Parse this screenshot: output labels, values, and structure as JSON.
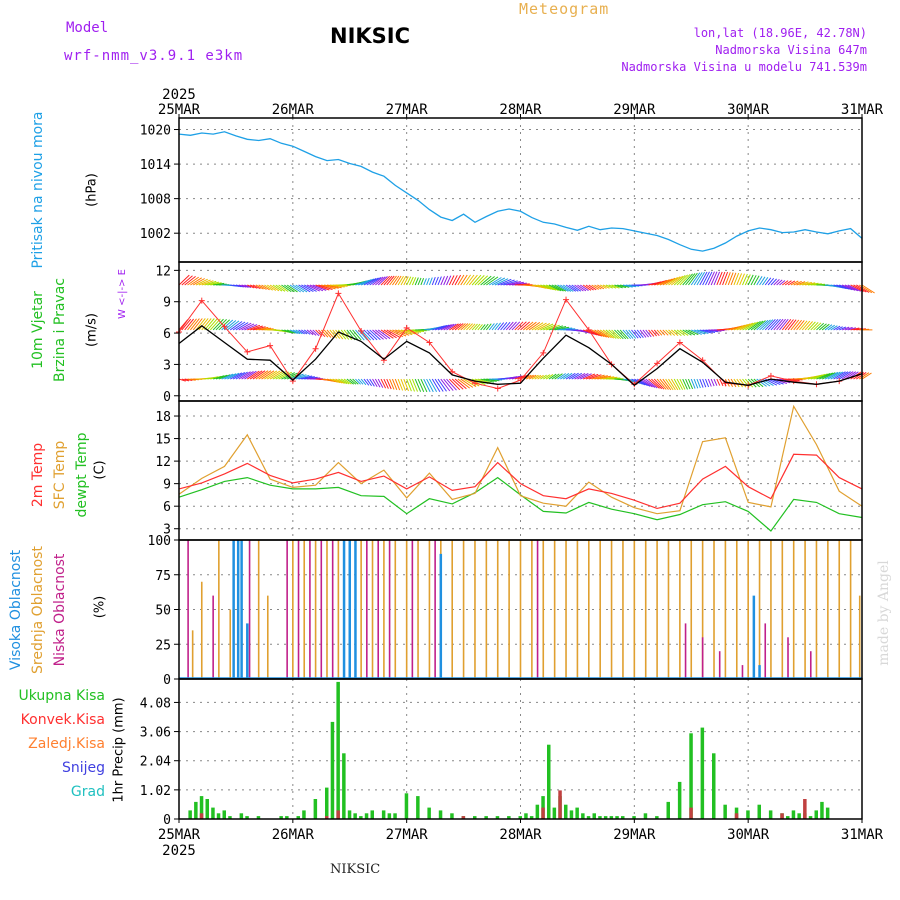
{
  "header": {
    "model_label": "Model",
    "model_name": "wrf-nmm_v3.9.1 e3km",
    "title": "NIKSIC",
    "subtitle": "Meteogram",
    "coords": "lon,lat (18.96E, 42.78N)",
    "elevation": "Nadmorska Visina 647m",
    "model_elevation": "Nadmorska Visina u modelu 741.539m"
  },
  "footer": {
    "station": "NIKSIC",
    "credit": "made by Angel"
  },
  "colors": {
    "pressure": "#1ea0e6",
    "wind_speed": "#000000",
    "gust": "#ff3030",
    "temp2m": "#ff3030",
    "sfc_temp": "#e0a030",
    "dewpoint": "#22c022",
    "high_cloud": "#2090e0",
    "mid_cloud": "#e0a030",
    "low_cloud": "#c0208a",
    "total_precip": "#22c022",
    "conv_precip": "#c04040"
  },
  "chart_data": [
    {
      "type": "line",
      "panel": "pressure",
      "ylabel": "Pritisak na nivou mora",
      "unit": "(hPa)",
      "ylim": [
        997,
        1022
      ],
      "yticks": [
        1002,
        1008,
        1014,
        1020
      ],
      "x": [
        0,
        0.1,
        0.2,
        0.3,
        0.4,
        0.5,
        0.6,
        0.7,
        0.8,
        0.9,
        1.0,
        1.1,
        1.2,
        1.3,
        1.4,
        1.5,
        1.6,
        1.7,
        1.8,
        1.9,
        2.0,
        2.1,
        2.2,
        2.3,
        2.4,
        2.5,
        2.6,
        2.7,
        2.8,
        2.9,
        3.0,
        3.1,
        3.2,
        3.3,
        3.4,
        3.5,
        3.6,
        3.7,
        3.8,
        3.9,
        4.0,
        4.1,
        4.2,
        4.3,
        4.4,
        4.5,
        4.6,
        4.7,
        4.8,
        4.9,
        5.0,
        5.1,
        5.2,
        5.3,
        5.4,
        5.5,
        5.6,
        5.7,
        5.8,
        5.9,
        6.0
      ],
      "values": [
        1019.2,
        1019.0,
        1019.4,
        1019.2,
        1019.6,
        1018.9,
        1018.3,
        1018.1,
        1018.4,
        1017.6,
        1017.1,
        1016.2,
        1015.3,
        1014.6,
        1014.8,
        1014.1,
        1013.6,
        1012.6,
        1011.9,
        1010.3,
        1009.0,
        1007.7,
        1006.1,
        1004.8,
        1004.2,
        1005.3,
        1003.9,
        1004.9,
        1005.8,
        1006.2,
        1005.8,
        1004.7,
        1003.9,
        1003.6,
        1003.0,
        1002.5,
        1003.2,
        1002.6,
        1002.9,
        1002.8,
        1002.4,
        1002.0,
        1001.6,
        1000.9,
        1000.0,
        999.2,
        998.9,
        999.4,
        1000.3,
        1001.5,
        1002.4,
        1002.9,
        1002.6,
        1002.1,
        1002.2,
        1002.6,
        1002.2,
        1001.9,
        1002.4,
        1002.8,
        1001.1
      ]
    },
    {
      "type": "line",
      "panel": "wind",
      "ylabel": "10m Vjetar Brzina i Pravac",
      "unit": "(m/s)",
      "compass": "W <-|-> E",
      "ylim": [
        -0.5,
        12.8
      ],
      "yticks": [
        0,
        3,
        6,
        9,
        12
      ],
      "x": [
        0,
        0.2,
        0.4,
        0.6,
        0.8,
        1.0,
        1.2,
        1.4,
        1.6,
        1.8,
        2.0,
        2.2,
        2.4,
        2.6,
        2.8,
        3.0,
        3.2,
        3.4,
        3.6,
        3.8,
        4.0,
        4.2,
        4.4,
        4.6,
        4.8,
        5.0,
        5.2,
        5.4,
        5.6,
        5.8,
        6.0
      ],
      "series": [
        {
          "name": "speed",
          "values": [
            5.0,
            6.7,
            5.1,
            3.5,
            3.4,
            1.5,
            3.5,
            6.1,
            5.2,
            3.5,
            5.2,
            4.1,
            2.0,
            1.4,
            1.1,
            1.2,
            3.6,
            5.8,
            4.6,
            3.0,
            1.0,
            2.6,
            4.5,
            3.2,
            1.3,
            1.0,
            1.6,
            1.3,
            1.1,
            1.4,
            2.1
          ]
        },
        {
          "name": "gust",
          "values": [
            6.1,
            9.1,
            6.6,
            4.2,
            4.8,
            1.4,
            4.5,
            9.8,
            6.2,
            3.4,
            6.5,
            5.1,
            2.3,
            1.2,
            0.7,
            1.5,
            4.1,
            9.2,
            6.3,
            3.0,
            1.1,
            3.1,
            5.1,
            3.4,
            1.2,
            1.0,
            1.9,
            1.4,
            1.1,
            1.4,
            2.1
          ]
        }
      ]
    },
    {
      "type": "line",
      "panel": "temperature",
      "ylabels": [
        "2m Temp",
        "SFC Temp",
        "dewpt Temp"
      ],
      "unit": "(C)",
      "ylim": [
        1.5,
        20
      ],
      "yticks": [
        3,
        6,
        9,
        12,
        15,
        18
      ],
      "x": [
        0,
        0.2,
        0.4,
        0.6,
        0.8,
        1.0,
        1.2,
        1.4,
        1.6,
        1.8,
        2.0,
        2.2,
        2.4,
        2.6,
        2.8,
        3.0,
        3.2,
        3.4,
        3.6,
        3.8,
        4.0,
        4.2,
        4.4,
        4.6,
        4.8,
        5.0,
        5.2,
        5.4,
        5.6,
        5.8,
        6.0
      ],
      "series": [
        {
          "name": "2m Temp",
          "values": [
            8.3,
            9.1,
            10.3,
            11.7,
            10.1,
            9.1,
            9.6,
            10.5,
            9.3,
            10.0,
            8.3,
            9.9,
            8.1,
            8.6,
            11.8,
            9.0,
            7.4,
            7.0,
            8.3,
            7.7,
            6.8,
            5.7,
            6.4,
            9.6,
            11.3,
            8.6,
            7.0,
            12.9,
            12.8,
            9.8,
            8.3
          ]
        },
        {
          "name": "SFC Temp",
          "values": [
            7.6,
            9.7,
            11.3,
            15.5,
            9.6,
            8.5,
            8.8,
            11.8,
            9.0,
            10.8,
            7.1,
            10.4,
            6.9,
            7.7,
            13.8,
            7.4,
            6.4,
            6.0,
            9.2,
            7.2,
            5.8,
            5.0,
            5.4,
            14.6,
            15.1,
            6.5,
            5.9,
            19.3,
            14.2,
            8.0,
            6.0
          ]
        },
        {
          "name": "dewpt Temp",
          "values": [
            7.2,
            8.2,
            9.3,
            9.8,
            8.8,
            8.3,
            8.3,
            8.5,
            7.4,
            7.3,
            5.0,
            7.0,
            6.3,
            7.8,
            9.8,
            7.5,
            5.3,
            5.1,
            6.5,
            5.6,
            5.0,
            4.2,
            4.9,
            6.2,
            6.6,
            5.3,
            2.7,
            6.9,
            6.5,
            5.0,
            4.5
          ]
        }
      ]
    },
    {
      "type": "bar",
      "panel": "clouds",
      "ylabels": [
        "Visoka Oblacnost",
        "Srednja Oblacnost",
        "Niska Oblacnost"
      ],
      "unit": "(%)",
      "ylim": [
        0,
        100
      ],
      "yticks": [
        0,
        25,
        50,
        75,
        100
      ],
      "series": [
        {
          "name": "Visoka Oblacnost",
          "x": [
            0.48,
            0.52,
            0.55,
            0.6,
            1.45,
            1.5,
            1.55,
            2.3,
            5.05,
            5.1
          ],
          "values": [
            100,
            100,
            100,
            40,
            100,
            100,
            100,
            90,
            60,
            10
          ]
        },
        {
          "name": "Srednja Oblacnost",
          "x": [
            0.12,
            0.2,
            0.35,
            0.45,
            0.7,
            0.78,
            1.0,
            1.1,
            1.2,
            1.3,
            1.4,
            1.5,
            1.6,
            1.7,
            1.8,
            1.9,
            2.0,
            2.1,
            2.2,
            2.3,
            2.4,
            2.5,
            2.6,
            2.7,
            2.8,
            2.9,
            3.0,
            3.1,
            3.2,
            3.3,
            3.4,
            3.5,
            3.6,
            3.7,
            3.8,
            3.9,
            4.0,
            4.1,
            4.2,
            4.3,
            4.4,
            4.5,
            4.6,
            4.7,
            4.8,
            4.9,
            5.0,
            5.1,
            5.2,
            5.3,
            5.4,
            5.5,
            5.6,
            5.7,
            5.8,
            5.9,
            5.98
          ],
          "values": [
            35,
            70,
            100,
            50,
            100,
            60,
            100,
            100,
            100,
            100,
            100,
            100,
            100,
            100,
            100,
            100,
            100,
            100,
            100,
            100,
            100,
            100,
            100,
            100,
            100,
            100,
            100,
            100,
            100,
            100,
            100,
            100,
            100,
            100,
            100,
            100,
            100,
            100,
            100,
            100,
            100,
            100,
            100,
            100,
            100,
            100,
            100,
            100,
            100,
            100,
            100,
            100,
            100,
            100,
            100,
            100,
            60
          ]
        },
        {
          "name": "Niska Oblacnost",
          "x": [
            0.08,
            0.3,
            0.62,
            0.95,
            1.05,
            1.15,
            1.25,
            1.35,
            1.45,
            1.55,
            1.65,
            1.75,
            1.85,
            2.05,
            2.25,
            3.15,
            4.45,
            4.6,
            4.75,
            4.95,
            5.15,
            5.35,
            5.55
          ],
          "values": [
            100,
            60,
            100,
            100,
            100,
            100,
            100,
            100,
            100,
            100,
            100,
            100,
            100,
            100,
            100,
            100,
            40,
            30,
            20,
            10,
            40,
            30,
            20
          ]
        }
      ]
    },
    {
      "type": "bar",
      "panel": "precipitation",
      "ylabels": [
        "Ukupna Kisa",
        "Konvek.Kisa",
        "Zaledj.Kisa",
        "Snijeg",
        "Grad"
      ],
      "unit": "1hr Precip (mm)",
      "ylim": [
        0,
        4.9
      ],
      "yticks": [
        0,
        1.02,
        2.04,
        3.06,
        4.08
      ],
      "series": [
        {
          "name": "Ukupna Kisa",
          "x": [
            0.1,
            0.15,
            0.2,
            0.25,
            0.3,
            0.35,
            0.4,
            0.45,
            0.55,
            0.6,
            0.7,
            0.9,
            0.95,
            1.05,
            1.1,
            1.2,
            1.3,
            1.35,
            1.4,
            1.45,
            1.5,
            1.55,
            1.6,
            1.65,
            1.7,
            1.8,
            1.85,
            1.9,
            2.0,
            2.1,
            2.2,
            2.3,
            2.4,
            2.5,
            2.6,
            2.7,
            2.8,
            2.9,
            3.0,
            3.05,
            3.1,
            3.15,
            3.2,
            3.25,
            3.3,
            3.35,
            3.4,
            3.45,
            3.5,
            3.55,
            3.6,
            3.65,
            3.7,
            3.75,
            3.8,
            3.85,
            3.9,
            4.0,
            4.1,
            4.2,
            4.3,
            4.4,
            4.5,
            4.6,
            4.7,
            4.8,
            4.9,
            5.0,
            5.1,
            5.2,
            5.3,
            5.35,
            5.4,
            5.45,
            5.5,
            5.55,
            5.6,
            5.65,
            5.7
          ],
          "values": [
            0.3,
            0.6,
            0.8,
            0.7,
            0.4,
            0.2,
            0.3,
            0.1,
            0.2,
            0.1,
            0.1,
            0.1,
            0.1,
            0.1,
            0.3,
            0.7,
            1.1,
            3.4,
            4.8,
            2.3,
            0.3,
            0.2,
            0.1,
            0.2,
            0.3,
            0.3,
            0.2,
            0.2,
            0.9,
            0.8,
            0.4,
            0.3,
            0.2,
            0.1,
            0.1,
            0.1,
            0.1,
            0.1,
            0.1,
            0.2,
            0.1,
            0.5,
            0.8,
            2.6,
            0.4,
            0.8,
            0.5,
            0.3,
            0.4,
            0.2,
            0.1,
            0.2,
            0.1,
            0.1,
            0.1,
            0.1,
            0.1,
            0.1,
            0.2,
            0.1,
            0.6,
            1.3,
            3.0,
            3.2,
            2.3,
            0.5,
            0.4,
            0.3,
            0.5,
            0.3,
            0.2,
            0.1,
            0.3,
            0.2,
            0.2,
            0.1,
            0.3,
            0.6,
            0.4
          ]
        },
        {
          "name": "Konvek.Kisa",
          "x": [
            0.2,
            1.3,
            1.4,
            2.5,
            3.2,
            3.35,
            4.5,
            4.9,
            5.3,
            5.5
          ],
          "values": [
            0.2,
            0.1,
            0.3,
            0.1,
            0.4,
            1.0,
            0.4,
            0.2,
            0.2,
            0.7
          ]
        }
      ]
    }
  ],
  "x_axis": {
    "year": "2025",
    "ticks": [
      "25MAR",
      "26MAR",
      "27MAR",
      "28MAR",
      "29MAR",
      "30MAR",
      "31MAR"
    ]
  }
}
